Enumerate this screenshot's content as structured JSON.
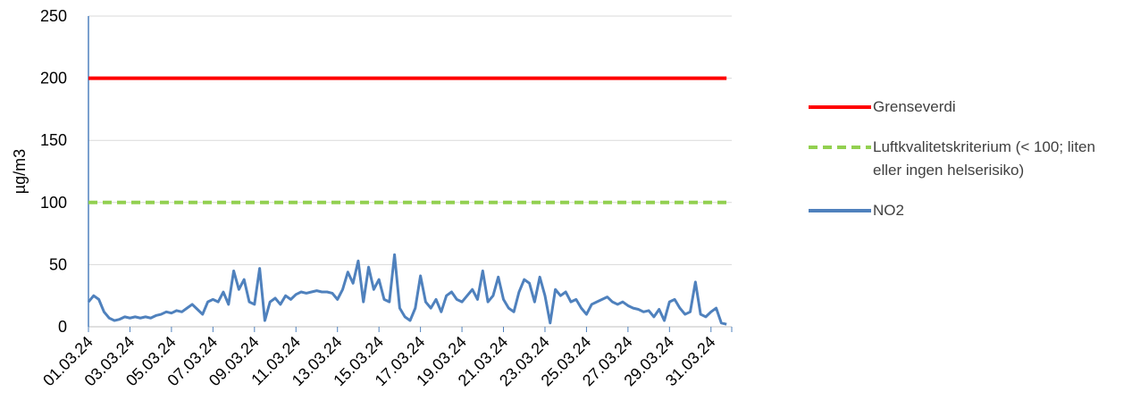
{
  "chart_data": {
    "type": "line",
    "y_label": "µg/m3",
    "categories": [
      "01.03.24",
      null,
      null,
      null,
      null,
      null,
      null,
      null,
      "03.03.24",
      null,
      null,
      null,
      null,
      null,
      null,
      null,
      "05.03.24",
      null,
      null,
      null,
      null,
      null,
      null,
      null,
      "07.03.24",
      null,
      null,
      null,
      null,
      null,
      null,
      null,
      "09.03.24",
      null,
      null,
      null,
      null,
      null,
      null,
      null,
      "11.03.24",
      null,
      null,
      null,
      null,
      null,
      null,
      null,
      "13.03.24",
      null,
      null,
      null,
      null,
      null,
      null,
      null,
      "15.03.24",
      null,
      null,
      null,
      null,
      null,
      null,
      null,
      "17.03.24",
      null,
      null,
      null,
      null,
      null,
      null,
      null,
      "19.03.24",
      null,
      null,
      null,
      null,
      null,
      null,
      null,
      "21.03.24",
      null,
      null,
      null,
      null,
      null,
      null,
      null,
      "23.03.24",
      null,
      null,
      null,
      null,
      null,
      null,
      null,
      "25.03.24",
      null,
      null,
      null,
      null,
      null,
      null,
      null,
      "27.03.24",
      null,
      null,
      null,
      null,
      null,
      null,
      null,
      "29.03.24",
      null,
      null,
      null,
      null,
      null,
      null,
      null,
      "31.03.24",
      null,
      null,
      null
    ],
    "series": [
      {
        "name": "Grenseverdi",
        "color": "#ff0000",
        "dashed": false,
        "values": [
          200,
          200,
          200,
          200,
          200,
          200,
          200,
          200,
          200,
          200,
          200,
          200,
          200,
          200,
          200,
          200,
          200,
          200,
          200,
          200,
          200,
          200,
          200,
          200,
          200,
          200,
          200,
          200,
          200,
          200,
          200,
          200,
          200,
          200,
          200,
          200,
          200,
          200,
          200,
          200,
          200,
          200,
          200,
          200,
          200,
          200,
          200,
          200,
          200,
          200,
          200,
          200,
          200,
          200,
          200,
          200,
          200,
          200,
          200,
          200,
          200,
          200,
          200,
          200,
          200,
          200,
          200,
          200,
          200,
          200,
          200,
          200,
          200,
          200,
          200,
          200,
          200,
          200,
          200,
          200,
          200,
          200,
          200,
          200,
          200,
          200,
          200,
          200,
          200,
          200,
          200,
          200,
          200,
          200,
          200,
          200,
          200,
          200,
          200,
          200,
          200,
          200,
          200,
          200,
          200,
          200,
          200,
          200,
          200,
          200,
          200,
          200,
          200,
          200,
          200,
          200,
          200,
          200,
          200,
          200,
          200,
          200,
          200,
          200
        ]
      },
      {
        "name": "Luftkvalitetskriterium (< 100; liten eller ingen helserisiko)",
        "color": "#92d050",
        "dashed": true,
        "values": [
          100,
          100,
          100,
          100,
          100,
          100,
          100,
          100,
          100,
          100,
          100,
          100,
          100,
          100,
          100,
          100,
          100,
          100,
          100,
          100,
          100,
          100,
          100,
          100,
          100,
          100,
          100,
          100,
          100,
          100,
          100,
          100,
          100,
          100,
          100,
          100,
          100,
          100,
          100,
          100,
          100,
          100,
          100,
          100,
          100,
          100,
          100,
          100,
          100,
          100,
          100,
          100,
          100,
          100,
          100,
          100,
          100,
          100,
          100,
          100,
          100,
          100,
          100,
          100,
          100,
          100,
          100,
          100,
          100,
          100,
          100,
          100,
          100,
          100,
          100,
          100,
          100,
          100,
          100,
          100,
          100,
          100,
          100,
          100,
          100,
          100,
          100,
          100,
          100,
          100,
          100,
          100,
          100,
          100,
          100,
          100,
          100,
          100,
          100,
          100,
          100,
          100,
          100,
          100,
          100,
          100,
          100,
          100,
          100,
          100,
          100,
          100,
          100,
          100,
          100,
          100,
          100,
          100,
          100,
          100,
          100,
          100,
          100,
          100
        ]
      },
      {
        "name": "NO2",
        "color": "#4f81bd",
        "dashed": false,
        "values": [
          20,
          25,
          22,
          12,
          7,
          5,
          6,
          8,
          7,
          8,
          7,
          8,
          7,
          9,
          10,
          12,
          11,
          13,
          12,
          15,
          18,
          14,
          10,
          20,
          22,
          20,
          28,
          18,
          45,
          30,
          38,
          20,
          18,
          47,
          5,
          20,
          23,
          18,
          25,
          22,
          26,
          28,
          27,
          28,
          29,
          28,
          28,
          27,
          22,
          30,
          44,
          35,
          53,
          20,
          48,
          30,
          38,
          22,
          20,
          58,
          15,
          8,
          5,
          15,
          41,
          20,
          15,
          22,
          12,
          25,
          28,
          22,
          20,
          25,
          30,
          22,
          45,
          20,
          25,
          40,
          22,
          15,
          12,
          28,
          38,
          35,
          20,
          40,
          25,
          3,
          30,
          25,
          28,
          20,
          22,
          15,
          10,
          18,
          20,
          22,
          24,
          20,
          18,
          20,
          17,
          15,
          14,
          12,
          13,
          8,
          14,
          5,
          20,
          22,
          15,
          10,
          12,
          36,
          10,
          8,
          12,
          15,
          3,
          2
        ]
      }
    ],
    "ylim": [
      0,
      250
    ],
    "yticks": [
      0,
      50,
      100,
      150,
      200,
      250
    ],
    "grid": true,
    "legend": "right"
  }
}
